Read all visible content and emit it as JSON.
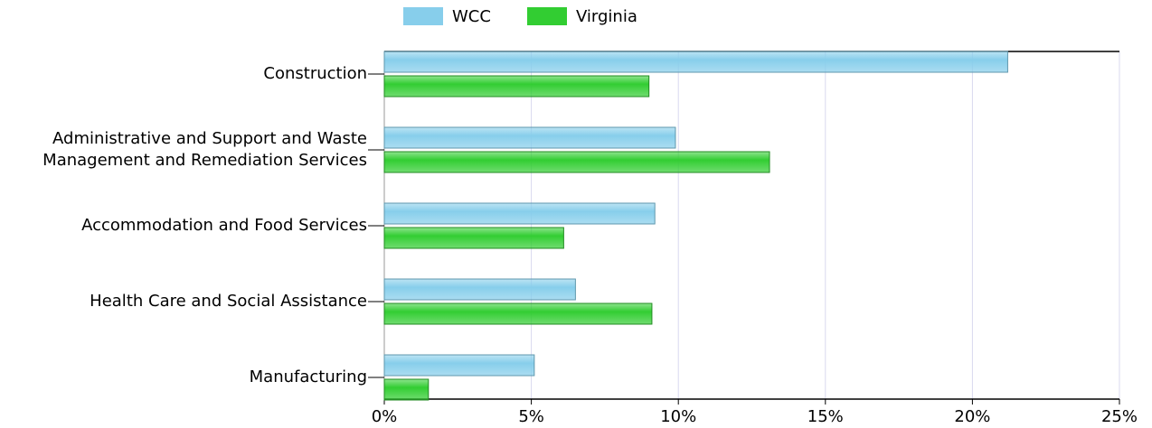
{
  "chart_data": {
    "type": "hbar",
    "categories": [
      "Construction",
      "Administrative and Support and Waste Management and Remediation Services",
      "Accommodation and Food Services",
      "Health Care and Social Assistance",
      "Manufacturing"
    ],
    "series": [
      {
        "name": "WCC",
        "color": "#87ceeb",
        "values": [
          21.2,
          9.9,
          9.2,
          6.5,
          5.1
        ]
      },
      {
        "name": "Virginia",
        "color": "#32cd32",
        "values": [
          9.0,
          13.1,
          6.1,
          9.1,
          1.5
        ]
      }
    ],
    "xlim": [
      0,
      25
    ],
    "xticks": [
      {
        "value": 0,
        "label": "0%"
      },
      {
        "value": 5,
        "label": "5%"
      },
      {
        "value": 10,
        "label": "10%"
      },
      {
        "value": 15,
        "label": "15%"
      },
      {
        "value": 20,
        "label": "20%"
      },
      {
        "value": 25,
        "label": "25%"
      }
    ],
    "grid": true,
    "legend": "top"
  }
}
